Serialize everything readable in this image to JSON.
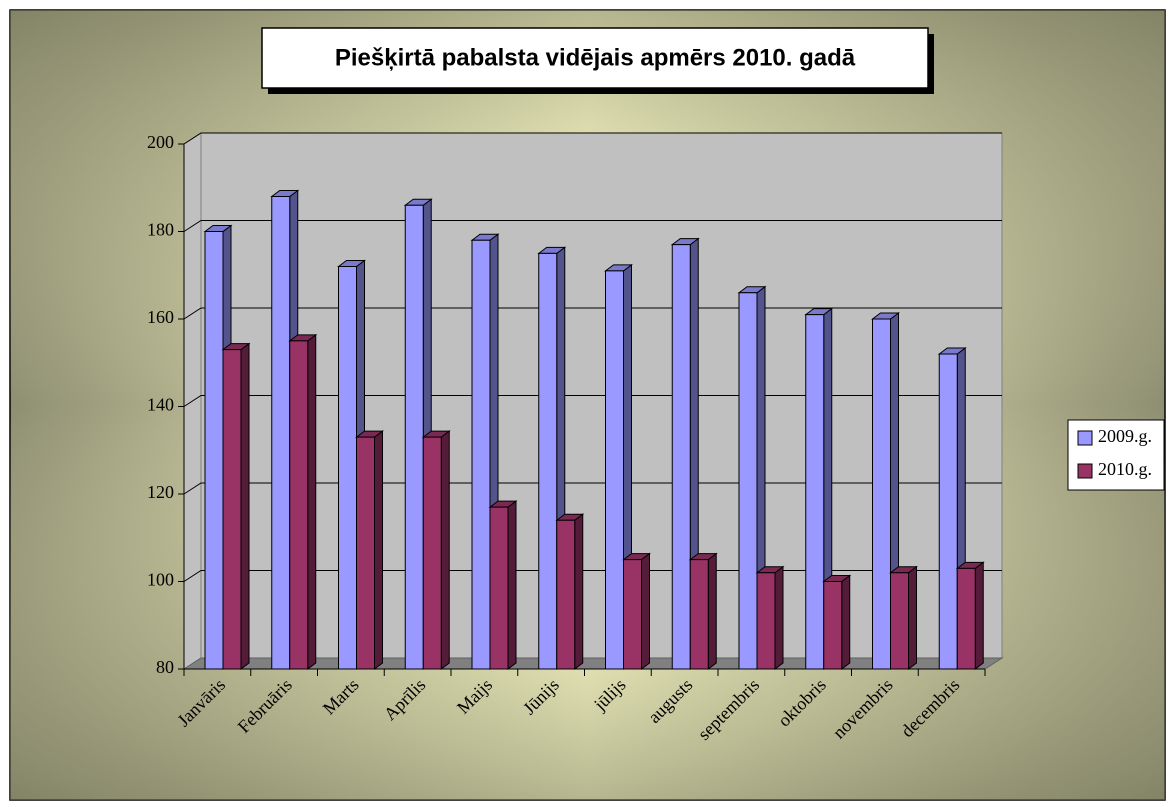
{
  "chart_data": {
    "type": "bar3d",
    "title": "Piešķirtā  pabalsta  vidējais apmērs 2010. gadā",
    "categories": [
      "Janvāris",
      "Februāris",
      "Marts",
      "Aprīlis",
      "Maijs",
      "Jūnijs",
      "jūlijs",
      "augusts",
      "septembris",
      "oktobris",
      "novembris",
      "decembris"
    ],
    "series": [
      {
        "name": "2009.g.",
        "color": "#9999ff",
        "values": [
          180,
          188,
          172,
          186,
          178,
          175,
          171,
          177,
          166,
          161,
          160,
          152
        ]
      },
      {
        "name": "2010.g.",
        "color": "#993366",
        "values": [
          153,
          155,
          133,
          133,
          117,
          114,
          105,
          105,
          102,
          100,
          102,
          103
        ]
      }
    ],
    "ylim": [
      80,
      200
    ],
    "yticks": [
      80,
      100,
      120,
      140,
      160,
      180,
      200
    ],
    "grid": true,
    "legend": "right"
  }
}
